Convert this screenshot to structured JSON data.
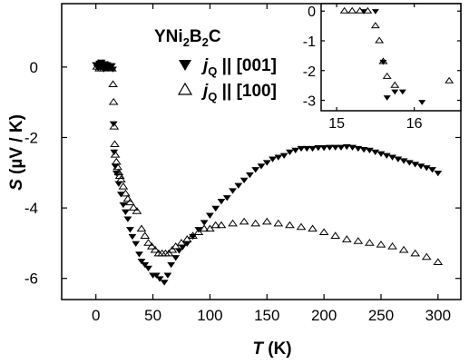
{
  "chart_data": [
    {
      "type": "scatter",
      "title": "",
      "sample_label": {
        "base": "YNi",
        "sub1": "2",
        "mid": "B",
        "sub2": "2",
        "tail": "C"
      },
      "xlabel": {
        "symbol": "T",
        "unit": " (K)"
      },
      "ylabel": {
        "symbol": "S",
        "unit": " (µV / K)"
      },
      "xlim": [
        -30,
        320
      ],
      "ylim": [
        -6.6,
        1.8
      ],
      "xticks": [
        0,
        50,
        100,
        150,
        200,
        250,
        300
      ],
      "yticks": [
        0,
        -2,
        -4,
        -6
      ],
      "series": [
        {
          "name": {
            "pre": "j",
            "sub": "Q",
            "post": " || [001]"
          },
          "marker": "filled-down-triangle",
          "color": "#000000",
          "points": [
            [
              0,
              0.08
            ],
            [
              1,
              0.05
            ],
            [
              2,
              -0.02
            ],
            [
              3,
              0.12
            ],
            [
              4,
              0.0
            ],
            [
              5,
              0.15
            ],
            [
              6,
              0.05
            ],
            [
              7,
              -0.05
            ],
            [
              8,
              0.1
            ],
            [
              9,
              0.0
            ],
            [
              10,
              0.08
            ],
            [
              11,
              -0.02
            ],
            [
              12,
              0.05
            ],
            [
              13,
              0.0
            ],
            [
              14,
              0.05
            ],
            [
              15,
              -0.05
            ],
            [
              15.5,
              -1.6
            ],
            [
              16,
              -2.4
            ],
            [
              17,
              -2.8
            ],
            [
              18,
              -3.0
            ],
            [
              20,
              -3.3
            ],
            [
              22,
              -3.6
            ],
            [
              24,
              -3.9
            ],
            [
              26,
              -4.1
            ],
            [
              28,
              -4.3
            ],
            [
              30,
              -4.6
            ],
            [
              32,
              -4.8
            ],
            [
              35,
              -5.0
            ],
            [
              38,
              -5.3
            ],
            [
              40,
              -5.5
            ],
            [
              43,
              -5.6
            ],
            [
              46,
              -5.7
            ],
            [
              50,
              -5.9
            ],
            [
              53,
              -5.9
            ],
            [
              56,
              -6.0
            ],
            [
              60,
              -6.1
            ],
            [
              63,
              -5.9
            ],
            [
              66,
              -5.6
            ],
            [
              70,
              -5.4
            ],
            [
              73,
              -5.2
            ],
            [
              76,
              -5.1
            ],
            [
              80,
              -5.0
            ],
            [
              85,
              -4.8
            ],
            [
              90,
              -4.6
            ],
            [
              95,
              -4.4
            ],
            [
              100,
              -4.2
            ],
            [
              105,
              -4.0
            ],
            [
              110,
              -3.8
            ],
            [
              115,
              -3.7
            ],
            [
              120,
              -3.5
            ],
            [
              125,
              -3.35
            ],
            [
              130,
              -3.2
            ],
            [
              135,
              -3.05
            ],
            [
              140,
              -2.9
            ],
            [
              145,
              -2.8
            ],
            [
              150,
              -2.7
            ],
            [
              155,
              -2.6
            ],
            [
              160,
              -2.55
            ],
            [
              165,
              -2.5
            ],
            [
              170,
              -2.4
            ],
            [
              175,
              -2.35
            ],
            [
              180,
              -2.3
            ],
            [
              185,
              -2.3
            ],
            [
              190,
              -2.3
            ],
            [
              195,
              -2.28
            ],
            [
              200,
              -2.28
            ],
            [
              205,
              -2.27
            ],
            [
              210,
              -2.27
            ],
            [
              215,
              -2.27
            ],
            [
              220,
              -2.25
            ],
            [
              225,
              -2.27
            ],
            [
              230,
              -2.3
            ],
            [
              235,
              -2.33
            ],
            [
              240,
              -2.35
            ],
            [
              245,
              -2.4
            ],
            [
              250,
              -2.45
            ],
            [
              255,
              -2.5
            ],
            [
              260,
              -2.55
            ],
            [
              265,
              -2.6
            ],
            [
              270,
              -2.65
            ],
            [
              275,
              -2.7
            ],
            [
              280,
              -2.75
            ],
            [
              285,
              -2.8
            ],
            [
              290,
              -2.85
            ],
            [
              295,
              -2.9
            ],
            [
              300,
              -3.0
            ]
          ]
        },
        {
          "name": {
            "pre": "j",
            "sub": "Q",
            "post": " || [100]"
          },
          "marker": "open-up-triangle",
          "color": "#000000",
          "points": [
            [
              1,
              0.0
            ],
            [
              2,
              0.1
            ],
            [
              3,
              -0.05
            ],
            [
              4,
              0.05
            ],
            [
              5,
              0.0
            ],
            [
              6,
              0.1
            ],
            [
              7,
              -0.05
            ],
            [
              8,
              0.05
            ],
            [
              9,
              0.0
            ],
            [
              10,
              0.05
            ],
            [
              11,
              -0.03
            ],
            [
              12,
              0.02
            ],
            [
              13,
              0.0
            ],
            [
              14,
              -0.05
            ],
            [
              15,
              -0.5
            ],
            [
              15.5,
              -1.0
            ],
            [
              16,
              -1.7
            ],
            [
              16.5,
              -2.2
            ],
            [
              17,
              -2.5
            ],
            [
              18,
              -2.7
            ],
            [
              19,
              -2.85
            ],
            [
              20,
              -3.0
            ],
            [
              21,
              -3.1
            ],
            [
              22,
              -3.2
            ],
            [
              24,
              -3.4
            ],
            [
              26,
              -3.6
            ],
            [
              28,
              -3.75
            ],
            [
              30,
              -3.85
            ],
            [
              33,
              -4.0
            ],
            [
              36,
              -4.1
            ],
            [
              40,
              -4.6
            ],
            [
              43,
              -4.8
            ],
            [
              46,
              -5.0
            ],
            [
              49,
              -5.1
            ],
            [
              52,
              -5.2
            ],
            [
              55,
              -5.3
            ],
            [
              58,
              -5.3
            ],
            [
              61,
              -5.3
            ],
            [
              64,
              -5.3
            ],
            [
              67,
              -5.2
            ],
            [
              70,
              -5.1
            ],
            [
              75,
              -5.0
            ],
            [
              80,
              -4.9
            ],
            [
              85,
              -4.8
            ],
            [
              90,
              -4.7
            ],
            [
              95,
              -4.6
            ],
            [
              100,
              -4.6
            ],
            [
              105,
              -4.5
            ],
            [
              110,
              -4.5
            ],
            [
              120,
              -4.45
            ],
            [
              130,
              -4.4
            ],
            [
              140,
              -4.45
            ],
            [
              150,
              -4.4
            ],
            [
              160,
              -4.45
            ],
            [
              170,
              -4.5
            ],
            [
              180,
              -4.55
            ],
            [
              190,
              -4.6
            ],
            [
              200,
              -4.7
            ],
            [
              210,
              -4.8
            ],
            [
              220,
              -4.9
            ],
            [
              230,
              -4.95
            ],
            [
              240,
              -5.0
            ],
            [
              250,
              -5.05
            ],
            [
              260,
              -5.1
            ],
            [
              270,
              -5.2
            ],
            [
              280,
              -5.3
            ],
            [
              290,
              -5.4
            ],
            [
              300,
              -5.55
            ]
          ]
        }
      ]
    },
    {
      "type": "scatter",
      "title": "",
      "role": "inset",
      "xlim": [
        14.8,
        16.6
      ],
      "ylim": [
        -3.35,
        0.25
      ],
      "xticks": [
        15,
        16
      ],
      "yticks": [
        0,
        -1,
        -2,
        -3
      ],
      "series": [
        {
          "marker": "filled-down-triangle",
          "points": [
            [
              15.35,
              0.0
            ],
            [
              15.5,
              0.0
            ],
            [
              15.6,
              -1.7
            ],
            [
              15.65,
              -2.9
            ],
            [
              15.75,
              -2.7
            ],
            [
              15.85,
              -2.7
            ],
            [
              16.1,
              -3.05
            ]
          ]
        },
        {
          "marker": "open-up-triangle",
          "points": [
            [
              15.1,
              0.0
            ],
            [
              15.2,
              0.0
            ],
            [
              15.3,
              0.0
            ],
            [
              15.4,
              0.0
            ],
            [
              15.5,
              -0.5
            ],
            [
              15.55,
              -1.0
            ],
            [
              15.6,
              -1.7
            ],
            [
              15.65,
              -2.2
            ],
            [
              15.75,
              -2.5
            ],
            [
              16.45,
              -2.35
            ]
          ]
        }
      ]
    }
  ]
}
